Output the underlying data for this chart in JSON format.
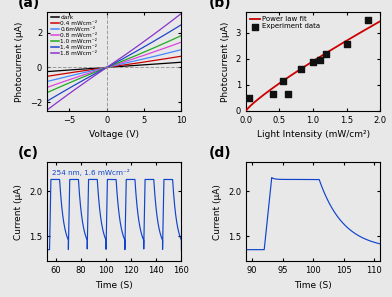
{
  "fig_width": 3.92,
  "fig_height": 2.97,
  "bg_color": "#e8e8e8",
  "panel_a": {
    "label": "(a)",
    "xlabel": "Voltage (V)",
    "ylabel": "Photocurrent (μA)",
    "xlim": [
      -8,
      10
    ],
    "ylim": [
      -2.5,
      3.2
    ],
    "xticks": [
      -5,
      0,
      5,
      10
    ],
    "yticks": [
      -2,
      0,
      2
    ],
    "curves": [
      {
        "label": "dark",
        "color": "#000000",
        "slope": 0.028
      },
      {
        "label": "0.4 mWcm⁻²",
        "color": "#cc0000",
        "slope": 0.06
      },
      {
        "label": "0.6mWcm⁻²",
        "color": "#4488ff",
        "slope": 0.095
      },
      {
        "label": "0.8 mWcm⁻²",
        "color": "#dd44dd",
        "slope": 0.135
      },
      {
        "label": "1.0 mWcm⁻²",
        "color": "#22aa22",
        "slope": 0.17
      },
      {
        "label": "1.4 mWcm⁻²",
        "color": "#2244cc",
        "slope": 0.228
      },
      {
        "label": "1.8 mWcm⁻²",
        "color": "#8833cc",
        "slope": 0.288
      }
    ]
  },
  "panel_b": {
    "label": "(b)",
    "xlabel": "Light Intensity (mW/cm²)",
    "ylabel": "Photocurrent (μA)",
    "xlim": [
      0,
      2.0
    ],
    "ylim": [
      0,
      3.8
    ],
    "xticks": [
      0.0,
      0.5,
      1.0,
      1.5,
      2.0
    ],
    "yticks": [
      0,
      1,
      2,
      3
    ],
    "exp_x": [
      0.05,
      0.4,
      0.55,
      0.62,
      0.82,
      1.0,
      1.1,
      1.2,
      1.5,
      1.82
    ],
    "exp_y": [
      0.48,
      0.65,
      1.15,
      0.65,
      1.6,
      1.87,
      1.95,
      2.2,
      2.55,
      3.5
    ],
    "fit_coeff": 1.91,
    "fit_exp": 0.85,
    "legend_experiment": "Experiment data",
    "legend_fit": "Power law fit",
    "fit_color": "#cc0000",
    "data_color": "#111111"
  },
  "panel_c": {
    "label": "(c)",
    "xlabel": "Time (S)",
    "ylabel": "Current (μA)",
    "xlim": [
      53,
      160
    ],
    "ylim": [
      1.22,
      2.32
    ],
    "xticks": [
      60,
      80,
      100,
      120,
      140,
      160
    ],
    "yticks": [
      1.5,
      2.0
    ],
    "annotation": "254 nm, 1.6 mWcm⁻²",
    "color": "#1144cc",
    "on_level": 2.13,
    "off_level": 1.35,
    "period": 15,
    "on_duration": 8,
    "rise_time": 1.0,
    "decay_tau": 3.5,
    "start_on": 55,
    "n_cycles": 8
  },
  "panel_d": {
    "label": "(d)",
    "xlabel": "Time (S)",
    "ylabel": "Current (μA)",
    "xlim": [
      89,
      111
    ],
    "ylim": [
      1.22,
      2.32
    ],
    "xticks": [
      90,
      95,
      100,
      105,
      110
    ],
    "yticks": [
      1.5,
      2.0
    ],
    "color": "#1144cc",
    "on_level": 2.13,
    "off_level": 1.35,
    "t_on": 92.0,
    "t_off": 101.0,
    "rise_time": 1.2,
    "decay_tau": 4.0,
    "pre_level": 1.35
  }
}
